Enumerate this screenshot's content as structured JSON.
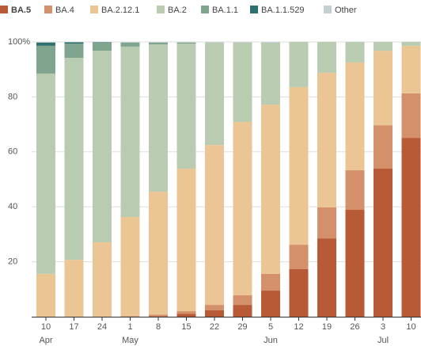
{
  "chart_data": {
    "type": "stacked_bar",
    "categories": [
      "10",
      "17",
      "24",
      "1",
      "8",
      "15",
      "22",
      "29",
      "5",
      "12",
      "19",
      "26",
      "3",
      "10"
    ],
    "month_labels": [
      "Apr",
      null,
      null,
      "May",
      null,
      null,
      null,
      null,
      "Jun",
      null,
      null,
      null,
      "Jul",
      null
    ],
    "series": [
      {
        "name": "BA.5",
        "color": "#b85a35",
        "values": [
          0,
          0,
          0,
          0.1,
          0.2,
          1.0,
          2.3,
          4.3,
          9.5,
          17.3,
          28.5,
          38.9,
          53.9,
          65.1
        ]
      },
      {
        "name": "BA.4",
        "color": "#d4906a",
        "values": [
          0,
          0,
          0,
          0.1,
          0.6,
          1.0,
          2.0,
          3.5,
          6.1,
          8.9,
          11.3,
          14.4,
          15.8,
          16.2
        ]
      },
      {
        "name": "BA.2.12.1",
        "color": "#ecc594",
        "values": [
          15.6,
          20.7,
          27.1,
          36.1,
          44.7,
          51.9,
          58.2,
          63.1,
          61.6,
          57.4,
          49.0,
          39.2,
          27.1,
          17.3
        ]
      },
      {
        "name": "BA.2",
        "color": "#b9cbb0",
        "values": [
          72.9,
          73.5,
          69.7,
          62.0,
          53.6,
          45.5,
          37.2,
          28.8,
          22.5,
          16.4,
          11.2,
          7.5,
          3.2,
          1.4
        ]
      },
      {
        "name": "BA.1.1",
        "color": "#7fa58e",
        "values": [
          10.1,
          5.2,
          2.9,
          1.5,
          0.7,
          0.4,
          0,
          0,
          0,
          0,
          0,
          0,
          0,
          0
        ]
      },
      {
        "name": "BA.1.1.529",
        "color": "#2f7070",
        "values": [
          1.2,
          0.5,
          0.2,
          0,
          0,
          0,
          0,
          0,
          0,
          0,
          0,
          0,
          0,
          0
        ]
      },
      {
        "name": "Other",
        "color": "#c5ced2",
        "values": [
          0.2,
          0.1,
          0.1,
          0.2,
          0.2,
          0.2,
          0.3,
          0.3,
          0.3,
          0,
          0,
          0,
          0,
          0
        ]
      }
    ],
    "ylim": [
      0,
      100
    ],
    "yticks": [
      20,
      40,
      60,
      80,
      {
        "value": 100,
        "label": "100%"
      }
    ],
    "grid": true
  }
}
